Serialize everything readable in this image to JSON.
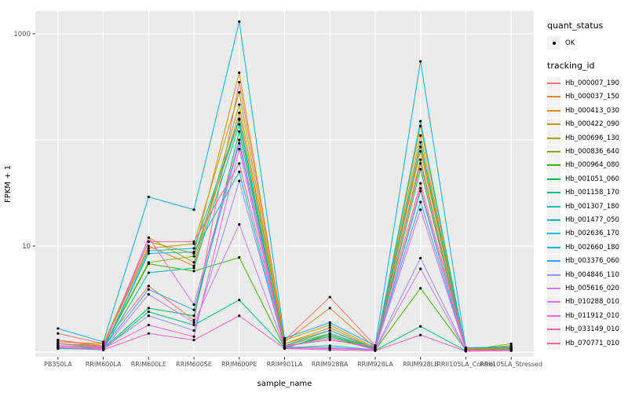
{
  "chart_data": {
    "type": "line",
    "title": "",
    "xlabel": "sample_name",
    "ylabel": "FPKM + 1",
    "y_scale": "log10",
    "ylim": [
      0.9,
      1700
    ],
    "grid": true,
    "legend_position": "right",
    "panel_bg": "#EBEBEB",
    "grid_color": "#FFFFFF",
    "point_color": "#000000",
    "axis_text_color": "#4D4D4D",
    "y_axis_ticks": [
      {
        "value": 10,
        "label": "10"
      },
      {
        "value": 1000,
        "label": "1000"
      }
    ],
    "y_gridline_values": [
      1,
      10,
      100,
      1000
    ],
    "categories": [
      "PB350LA",
      "RRIM600LA",
      "RRIM600LE",
      "RRIM600SE",
      "RRIM600PE",
      "RRIM901LA",
      "RRIM928BA",
      "RRIM928LA",
      "RRIM928LE",
      "RRII105LA_Control",
      "RRII105LA_Stressed"
    ],
    "legend": {
      "quant_status": {
        "title": "quant_status",
        "items": [
          {
            "label": "OK",
            "marker": "point"
          }
        ]
      },
      "tracking_id": {
        "title": "tracking_id"
      }
    },
    "series": [
      {
        "name": "Hb_000007_190",
        "color": "#F8766D",
        "values": [
          1.5,
          1.2,
          4.2,
          2.0,
          350,
          1.3,
          3.3,
          1.15,
          39,
          1.1,
          1.1
        ]
      },
      {
        "name": "Hb_000037_150",
        "color": "#EA8331",
        "values": [
          1.3,
          1.15,
          10,
          6.5,
          180,
          1.25,
          2.6,
          1.1,
          78,
          1.08,
          1.1
        ]
      },
      {
        "name": "Hb_000413_030",
        "color": "#D89000",
        "values": [
          1.25,
          1.2,
          11,
          8.5,
          430,
          1.3,
          1.8,
          1.1,
          110,
          1.05,
          1.12
        ]
      },
      {
        "name": "Hb_000422_090",
        "color": "#C09B00",
        "values": [
          1.2,
          1.15,
          9.5,
          10.5,
          280,
          1.2,
          1.7,
          1.08,
          135,
          1.06,
          1.1
        ]
      },
      {
        "name": "Hb_000696_130",
        "color": "#A3A500",
        "values": [
          1.15,
          1.1,
          12,
          7.0,
          215,
          1.2,
          1.6,
          1.06,
          86,
          1.05,
          1.15
        ]
      },
      {
        "name": "Hb_000836_640",
        "color": "#7CAE00",
        "values": [
          1.2,
          1.12,
          7.0,
          8.0,
          155,
          1.15,
          1.5,
          1.07,
          65,
          1.04,
          1.2
        ]
      },
      {
        "name": "Hb_000964_080",
        "color": "#39B600",
        "values": [
          1.15,
          1.1,
          6.8,
          5.8,
          7.8,
          1.1,
          1.45,
          1.05,
          4.0,
          1.05,
          1.08
        ]
      },
      {
        "name": "Hb_001051_060",
        "color": "#00BB4E",
        "values": [
          1.1,
          1.08,
          2.6,
          2.2,
          120,
          1.12,
          1.4,
          1.05,
          53,
          1.04,
          1.07
        ]
      },
      {
        "name": "Hb_001158_170",
        "color": "#00BF7D",
        "values": [
          1.1,
          1.06,
          2.4,
          1.8,
          3.1,
          1.1,
          1.1,
          1.04,
          1.75,
          1.03,
          1.06
        ]
      },
      {
        "name": "Hb_001307_180",
        "color": "#00C1A3",
        "values": [
          1.08,
          1.06,
          5.6,
          6.2,
          140,
          1.1,
          1.15,
          1.05,
          95,
          1.04,
          1.06
        ]
      },
      {
        "name": "Hb_001477_050",
        "color": "#00BFC4",
        "values": [
          1.1,
          1.05,
          9.0,
          9.5,
          158,
          1.08,
          1.5,
          1.06,
          150,
          1.03,
          1.05
        ]
      },
      {
        "name": "Hb_002636_170",
        "color": "#00BAE0",
        "values": [
          1.1,
          1.05,
          8.5,
          8.8,
          50,
          1.08,
          1.1,
          1.05,
          33,
          1.03,
          1.05
        ]
      },
      {
        "name": "Hb_002660_180",
        "color": "#00B0F6",
        "values": [
          1.67,
          1.25,
          29,
          22,
          1300,
          1.35,
          1.9,
          1.15,
          550,
          1.1,
          1.12
        ]
      },
      {
        "name": "Hb_003376_060",
        "color": "#35A2FF",
        "values": [
          1.2,
          1.1,
          3.9,
          2.5,
          93,
          1.15,
          1.6,
          1.08,
          26,
          1.05,
          1.06
        ]
      },
      {
        "name": "Hb_004846_110",
        "color": "#9590FF",
        "values": [
          1.15,
          1.08,
          2.2,
          1.6,
          41,
          1.1,
          1.1,
          1.06,
          7.7,
          1.04,
          1.05
        ]
      },
      {
        "name": "Hb_005616_020",
        "color": "#C77CFF",
        "values": [
          1.1,
          1.06,
          3.5,
          1.9,
          16,
          1.1,
          1.08,
          1.05,
          6.1,
          1.03,
          1.04
        ]
      },
      {
        "name": "Hb_010288_010",
        "color": "#E76BF3",
        "values": [
          1.2,
          1.1,
          12,
          2.8,
          100,
          1.12,
          1.35,
          1.06,
          22,
          1.04,
          1.05
        ]
      },
      {
        "name": "Hb_011912_010",
        "color": "#FA62DB",
        "values": [
          1.15,
          1.08,
          1.8,
          1.4,
          82,
          1.1,
          1.08,
          1.05,
          35,
          1.03,
          1.04
        ]
      },
      {
        "name": "Hb_033149_010",
        "color": "#FF62BC",
        "values": [
          1.12,
          1.05,
          1.5,
          1.3,
          2.2,
          1.08,
          1.05,
          1.03,
          1.45,
          1.02,
          1.03
        ]
      },
      {
        "name": "Hb_070771_010",
        "color": "#FF6A98",
        "values": [
          1.3,
          1.12,
          11,
          11,
          60,
          1.15,
          1.3,
          1.12,
          60,
          1.05,
          1.05
        ]
      }
    ]
  }
}
